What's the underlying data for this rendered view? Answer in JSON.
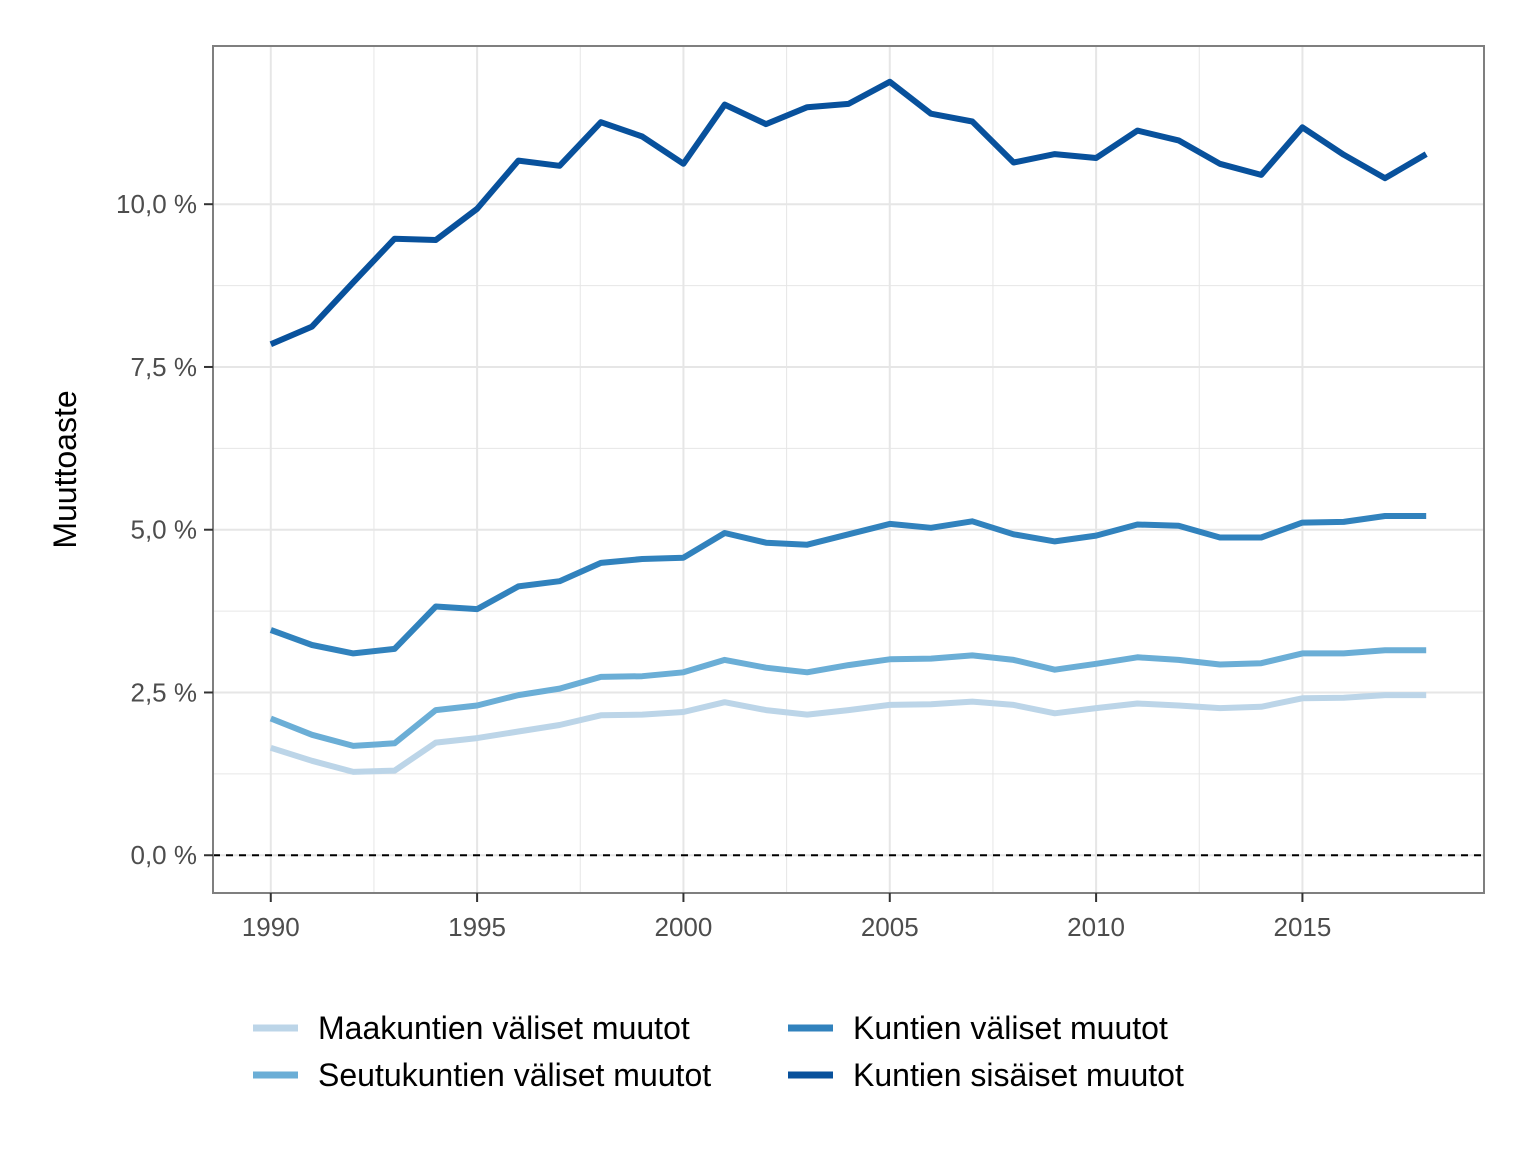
{
  "chart_data": {
    "type": "line",
    "ylabel": "Muuttoaste",
    "xlabel": "",
    "x": [
      1990,
      1991,
      1992,
      1993,
      1994,
      1995,
      1996,
      1997,
      1998,
      1999,
      2000,
      2001,
      2002,
      2003,
      2004,
      2005,
      2006,
      2007,
      2008,
      2009,
      2010,
      2011,
      2012,
      2013,
      2014,
      2015,
      2016,
      2017,
      2018
    ],
    "xlim": [
      1988.6,
      2019.4
    ],
    "ylim": [
      -0.58,
      12.43
    ],
    "x_ticks": [
      {
        "value": 1990,
        "label": "1990"
      },
      {
        "value": 1995,
        "label": "1995"
      },
      {
        "value": 2000,
        "label": "2000"
      },
      {
        "value": 2005,
        "label": "2005"
      },
      {
        "value": 2010,
        "label": "2010"
      },
      {
        "value": 2015,
        "label": "2015"
      }
    ],
    "y_ticks": [
      {
        "value": 0,
        "label": "0,0 %"
      },
      {
        "value": 2.5,
        "label": "2,5 %"
      },
      {
        "value": 5,
        "label": "5,0 %"
      },
      {
        "value": 7.5,
        "label": "7,5 %"
      },
      {
        "value": 10,
        "label": "10,0 %"
      }
    ],
    "reference_line": {
      "value": 0,
      "style": "dashed",
      "color": "#000000"
    },
    "grid": true,
    "legend_position": "bottom",
    "series": [
      {
        "name": "Maakuntien väliset muutot",
        "color": "#bcd5e8",
        "values": [
          1.65,
          1.45,
          1.28,
          1.3,
          1.73,
          1.8,
          1.9,
          2.0,
          2.15,
          2.16,
          2.2,
          2.35,
          2.23,
          2.16,
          2.23,
          2.31,
          2.32,
          2.36,
          2.31,
          2.18,
          2.26,
          2.33,
          2.3,
          2.26,
          2.28,
          2.41,
          2.42,
          2.46,
          2.46
        ]
      },
      {
        "name": "Seutukuntien väliset muutot",
        "color": "#6baed6",
        "values": [
          2.1,
          1.85,
          1.68,
          1.72,
          2.23,
          2.3,
          2.46,
          2.56,
          2.74,
          2.75,
          2.81,
          3.0,
          2.88,
          2.81,
          2.92,
          3.01,
          3.02,
          3.07,
          3.0,
          2.85,
          2.94,
          3.04,
          3.0,
          2.93,
          2.95,
          3.1,
          3.1,
          3.15,
          3.15
        ]
      },
      {
        "name": "Kuntien väliset muutot",
        "color": "#3182bd",
        "values": [
          3.46,
          3.23,
          3.1,
          3.17,
          3.82,
          3.78,
          4.13,
          4.21,
          4.49,
          4.55,
          4.57,
          4.95,
          4.8,
          4.77,
          4.93,
          5.09,
          5.03,
          5.13,
          4.93,
          4.82,
          4.91,
          5.08,
          5.06,
          4.88,
          4.88,
          5.11,
          5.12,
          5.21,
          5.21
        ]
      },
      {
        "name": "Kuntien sisäiset muutot",
        "color": "#08519c",
        "values": [
          7.85,
          8.12,
          8.8,
          9.47,
          9.45,
          9.93,
          10.67,
          10.59,
          11.26,
          11.04,
          10.62,
          11.53,
          11.23,
          11.49,
          11.54,
          11.88,
          11.39,
          11.27,
          10.64,
          10.77,
          10.71,
          11.13,
          10.98,
          10.62,
          10.45,
          11.18,
          10.76,
          10.4,
          10.77
        ]
      }
    ]
  }
}
